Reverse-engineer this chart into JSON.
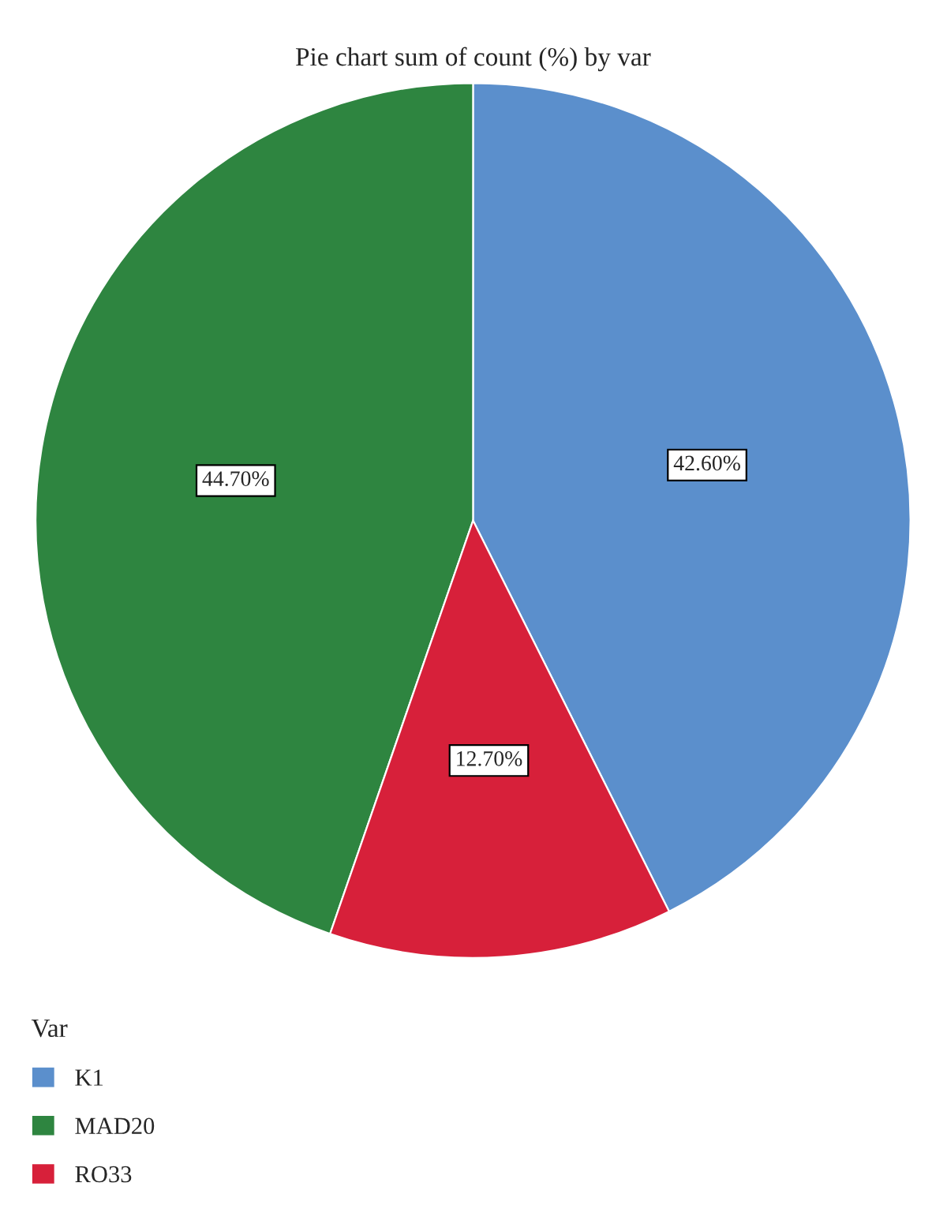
{
  "chart_data": {
    "type": "pie",
    "title": "Pie chart sum of count (%) by var",
    "legend_title": "Var",
    "categories": [
      "K1",
      "MAD20",
      "RO33"
    ],
    "values": [
      42.6,
      44.7,
      12.7
    ],
    "colors": [
      "#5b8fcc",
      "#2e8540",
      "#d7203a"
    ],
    "value_labels": [
      "42.60%",
      "44.70%",
      "12.70%"
    ],
    "legend": "bottom left"
  }
}
